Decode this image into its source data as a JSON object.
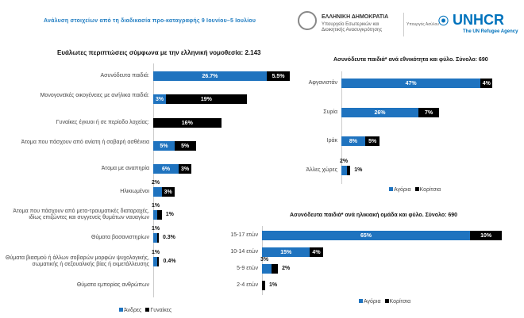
{
  "header": {
    "title": "Ανάλυση στοιχείων από τη διαδικασία προ-καταγραφής 9 Ιουνίου–5 Ιουλίου",
    "gov_name": "ΕΛΛΗΝΙΚΗ ΔΗΜΟΚΡΑΤΙΑ",
    "ministry": "Υπουργείο Εσωτερικών και Διοικητικής Ανασυγκρότησης",
    "minister": "Υπουργός Ασύλου",
    "unhcr": "UNHCR",
    "unhcr_sub": "The UN Refugee Agency"
  },
  "colors": {
    "male": "#1f73bf",
    "female": "#000000"
  },
  "chart_data": [
    {
      "type": "bar",
      "orientation": "horizontal",
      "stacked": true,
      "title": "Ευάλωτες περιπτώσεις σύμφωνα με την ελληνική νομοθεσία: 2.143",
      "categories": [
        "Ασυνόδευτα παιδιά:",
        "Μονογονεϊκές οικογένειες με ανήλικα παιδιά:",
        "Γυναίκες έγκυοι ή σε περίοδο λοχείας:",
        "Άτομα που πάσχουν από ανίατη ή σοβαρή ασθένεια",
        "Άτομα με αναπηρία",
        "Ηλικιωμένοι",
        "Άτομα που πάσχουν από μετα-τραυματικές διαταραχές, ιδίως επιζώντες και συγγενείς θυμάτων ναυαγίων",
        "Θύματα βασανιστηρίων",
        "Θύματα βιασμού ή άλλων σοβαρών μορφών ψυχολογικής, σωματικής ή σεξουαλικής βίας ή εκμετάλλευσης",
        "Θύματα εμπορίας ανθρώπων"
      ],
      "series": [
        {
          "name": "Άνδρες",
          "values": [
            26.7,
            3,
            0,
            5,
            6,
            2,
            1,
            1,
            1,
            0
          ],
          "labels": [
            "26.7%",
            "3%",
            "",
            "5%",
            "6%",
            "2%",
            "1%",
            "1%",
            "1%",
            ""
          ]
        },
        {
          "name": "Γυναίκες",
          "values": [
            5.5,
            19,
            16,
            5,
            3,
            3,
            1,
            0.3,
            0.4,
            0
          ],
          "labels": [
            "5.5%",
            "19%",
            "16%",
            "5%",
            "3%",
            "3%",
            "1%",
            "0.3%",
            "0.4%",
            ""
          ]
        }
      ],
      "legend": "bottom"
    },
    {
      "type": "bar",
      "orientation": "horizontal",
      "stacked": true,
      "title": "Ασυνόδευτα παιδιά* ανά εθνικότητα και φύλο. Σύνολο: 690",
      "categories": [
        "Αφγανιστάν",
        "Συρία",
        "Ιράκ",
        "Άλλες χώρες"
      ],
      "series": [
        {
          "name": "Αγόρια",
          "values": [
            47,
            26,
            8,
            2
          ],
          "labels": [
            "47%",
            "26%",
            "8%",
            "2%"
          ]
        },
        {
          "name": "Κορίτσια",
          "values": [
            4,
            7,
            5,
            1
          ],
          "labels": [
            "4%",
            "7%",
            "5%",
            "1%"
          ]
        }
      ],
      "legend": "bottom"
    },
    {
      "type": "bar",
      "orientation": "horizontal",
      "stacked": true,
      "title": "Ασυνόδευτα παιδιά* ανά ηλικιακή ομάδα και φύλο. Σύνολο: 690",
      "categories": [
        "15-17 ετών",
        "10-14 ετών",
        "5-9 ετών",
        "2-4 ετών"
      ],
      "series": [
        {
          "name": "Αγόρια",
          "values": [
            65,
            15,
            3,
            0
          ],
          "labels": [
            "65%",
            "15%",
            "3%",
            ""
          ]
        },
        {
          "name": "Κορίτσια",
          "values": [
            10,
            4,
            2,
            1
          ],
          "labels": [
            "10%",
            "4%",
            "2%",
            "1%"
          ]
        }
      ],
      "legend": "bottom"
    }
  ]
}
